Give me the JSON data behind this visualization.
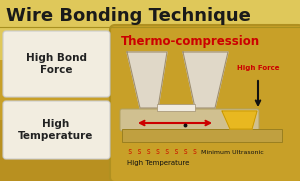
{
  "bg_color_top": "#d4b84a",
  "bg_color_bot": "#b89020",
  "title": "Wire Bonding Technique",
  "title_color": "#1a1a1a",
  "title_fontsize": 13,
  "technique_title": "Thermo-compression",
  "technique_color": "#cc0000",
  "left_labels": [
    "High Bond\nForce",
    "High\nTemperature"
  ],
  "label_color": "#222222",
  "right_panel_bg": "#c8a028",
  "force_label": "High Force",
  "force_color": "#cc0000",
  "bottom_label1": "s s s s s s s s",
  "bottom_label2": "High Temperature",
  "bottom_label3": "Minimum Ultrasonic",
  "arrow_color": "#cc0000",
  "force_arrow_color": "#111111",
  "tool_fill": "#e0d8c8",
  "tool_edge": "#a09070",
  "bond_fill": "#f0ebe0",
  "substrate_fill": "#d0c090",
  "substrate_edge": "#b0a060",
  "gold_wedge": "#e8b820",
  "base_fill": "#c0a040",
  "box_fill": "#f2ede0",
  "box_edge": "#cccccc"
}
